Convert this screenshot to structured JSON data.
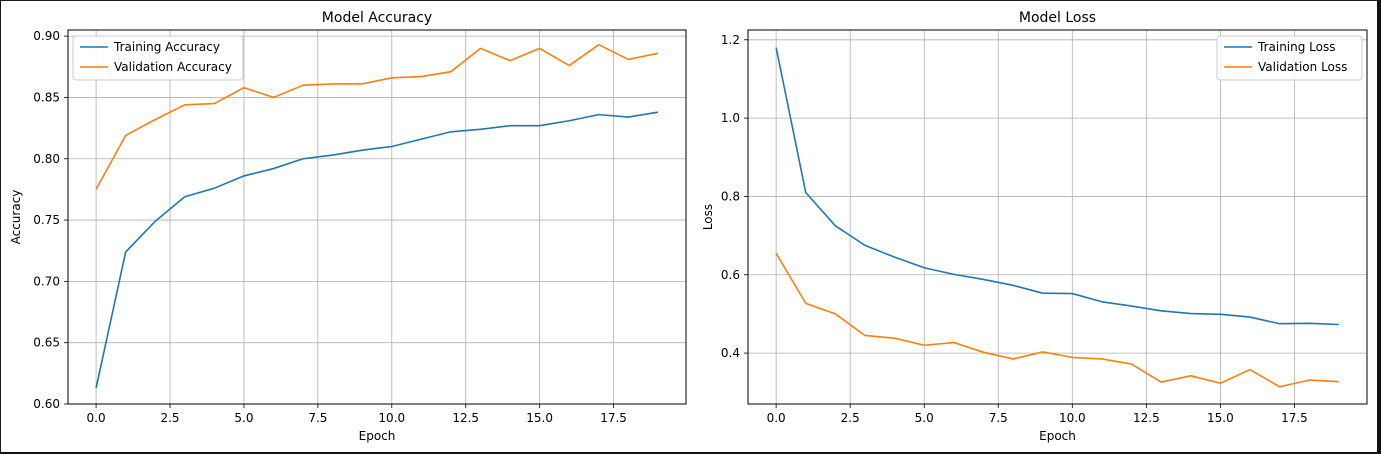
{
  "chart_data": [
    {
      "type": "line",
      "title": "Model Accuracy",
      "xlabel": "Epoch",
      "ylabel": "Accuracy",
      "xlim": [
        -0.95,
        19.95
      ],
      "ylim": [
        0.6,
        0.905
      ],
      "xticks": [
        0.0,
        2.5,
        5.0,
        7.5,
        10.0,
        12.5,
        15.0,
        17.5
      ],
      "xtick_labels": [
        "0.0",
        "2.5",
        "5.0",
        "7.5",
        "10.0",
        "12.5",
        "15.0",
        "17.5"
      ],
      "yticks": [
        0.6,
        0.65,
        0.7,
        0.75,
        0.8,
        0.85,
        0.9
      ],
      "ytick_labels": [
        "0.60",
        "0.65",
        "0.70",
        "0.75",
        "0.80",
        "0.85",
        "0.90"
      ],
      "grid": true,
      "legend_position": "top-left",
      "x": [
        0,
        1,
        2,
        3,
        4,
        5,
        6,
        7,
        8,
        9,
        10,
        11,
        12,
        13,
        14,
        15,
        16,
        17,
        18,
        19
      ],
      "series": [
        {
          "name": "Training Accuracy",
          "color": "#1f77b4",
          "values": [
            0.613,
            0.724,
            0.749,
            0.769,
            0.776,
            0.786,
            0.792,
            0.8,
            0.803,
            0.807,
            0.81,
            0.816,
            0.822,
            0.824,
            0.827,
            0.827,
            0.831,
            0.836,
            0.834,
            0.838
          ]
        },
        {
          "name": "Validation Accuracy",
          "color": "#ff7f0e",
          "values": [
            0.775,
            0.819,
            0.832,
            0.844,
            0.845,
            0.858,
            0.85,
            0.86,
            0.861,
            0.861,
            0.866,
            0.867,
            0.871,
            0.89,
            0.88,
            0.89,
            0.876,
            0.893,
            0.881,
            0.886
          ]
        }
      ]
    },
    {
      "type": "line",
      "title": "Model Loss",
      "xlabel": "Epoch",
      "ylabel": "Loss",
      "xlim": [
        -0.95,
        19.95
      ],
      "ylim": [
        0.27,
        1.225
      ],
      "xticks": [
        0.0,
        2.5,
        5.0,
        7.5,
        10.0,
        12.5,
        15.0,
        17.5
      ],
      "xtick_labels": [
        "0.0",
        "2.5",
        "5.0",
        "7.5",
        "10.0",
        "12.5",
        "15.0",
        "17.5"
      ],
      "yticks": [
        0.4,
        0.6,
        0.8,
        1.0,
        1.2
      ],
      "ytick_labels": [
        "0.4",
        "0.6",
        "0.8",
        "1.0",
        "1.2"
      ],
      "grid": true,
      "legend_position": "top-right",
      "x": [
        0,
        1,
        2,
        3,
        4,
        5,
        6,
        7,
        8,
        9,
        10,
        11,
        12,
        13,
        14,
        15,
        16,
        17,
        18,
        19
      ],
      "series": [
        {
          "name": "Training Loss",
          "color": "#1f77b4",
          "values": [
            1.18,
            0.81,
            0.725,
            0.675,
            0.645,
            0.618,
            0.601,
            0.588,
            0.573,
            0.553,
            0.552,
            0.531,
            0.52,
            0.508,
            0.501,
            0.499,
            0.492,
            0.475,
            0.476,
            0.473
          ]
        },
        {
          "name": "Validation Loss",
          "color": "#ff7f0e",
          "values": [
            0.655,
            0.527,
            0.5,
            0.445,
            0.438,
            0.42,
            0.427,
            0.402,
            0.385,
            0.403,
            0.389,
            0.385,
            0.372,
            0.326,
            0.342,
            0.323,
            0.358,
            0.314,
            0.331,
            0.327
          ]
        }
      ]
    }
  ]
}
